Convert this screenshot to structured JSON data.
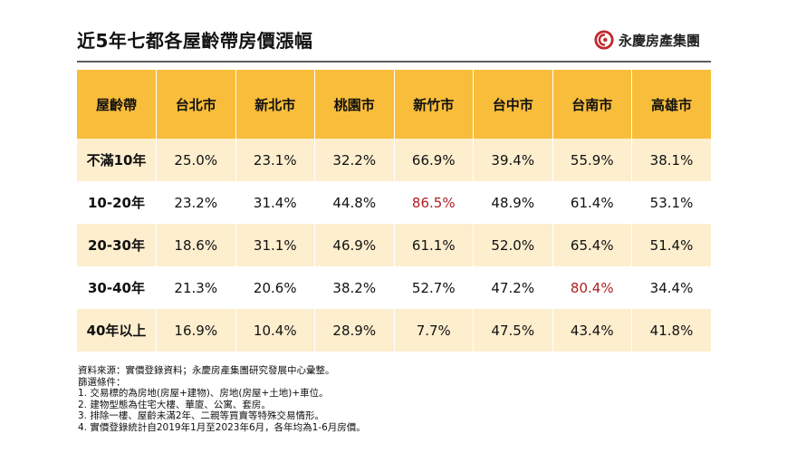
{
  "title": "近5年七都各屋齡帶房價漲幅",
  "brand": {
    "name": "永慶房產集團",
    "logo_icon": "yungching-logo-icon",
    "accent": "#c0272d"
  },
  "table": {
    "headers": [
      "屋齡帶",
      "台北市",
      "新北市",
      "桃園市",
      "新竹市",
      "台中市",
      "台南市",
      "高雄市"
    ],
    "rows": [
      {
        "label": "不滿10年",
        "cells": [
          {
            "v": "25.0%"
          },
          {
            "v": "23.1%"
          },
          {
            "v": "32.2%"
          },
          {
            "v": "66.9%"
          },
          {
            "v": "39.4%"
          },
          {
            "v": "55.9%"
          },
          {
            "v": "38.1%"
          }
        ]
      },
      {
        "label": "10-20年",
        "cells": [
          {
            "v": "23.2%"
          },
          {
            "v": "31.4%"
          },
          {
            "v": "44.8%"
          },
          {
            "v": "86.5%",
            "hl": true
          },
          {
            "v": "48.9%"
          },
          {
            "v": "61.4%"
          },
          {
            "v": "53.1%"
          }
        ]
      },
      {
        "label": "20-30年",
        "cells": [
          {
            "v": "18.6%"
          },
          {
            "v": "31.1%"
          },
          {
            "v": "46.9%"
          },
          {
            "v": "61.1%"
          },
          {
            "v": "52.0%"
          },
          {
            "v": "65.4%"
          },
          {
            "v": "51.4%"
          }
        ]
      },
      {
        "label": "30-40年",
        "cells": [
          {
            "v": "21.3%"
          },
          {
            "v": "20.6%"
          },
          {
            "v": "38.2%"
          },
          {
            "v": "52.7%"
          },
          {
            "v": "47.2%"
          },
          {
            "v": "80.4%",
            "hl": true
          },
          {
            "v": "34.4%"
          }
        ]
      },
      {
        "label": "40年以上",
        "cells": [
          {
            "v": "16.9%"
          },
          {
            "v": "10.4%"
          },
          {
            "v": "28.9%"
          },
          {
            "v": "7.7%"
          },
          {
            "v": "47.5%"
          },
          {
            "v": "43.4%"
          },
          {
            "v": "41.8%"
          }
        ]
      }
    ],
    "header_color": "#f8bd3a",
    "stripe_color": "#fdeece",
    "highlight_color": "#b01e23"
  },
  "notes": [
    "資料來源：實價登錄資料；永慶房產集團研究發展中心彙整。",
    "篩選條件：",
    "1. 交易標的為房地(房屋+建物)、房地(房屋+土地)+車位。",
    "2. 建物型態為住宅大樓、華廈、公寓、套房。",
    "3. 排除一樓、屋齡未滿2年、二親等買賣等特殊交易情形。",
    "4. 實價登錄統計自2019年1月至2023年6月，各年均為1-6月房價。"
  ]
}
